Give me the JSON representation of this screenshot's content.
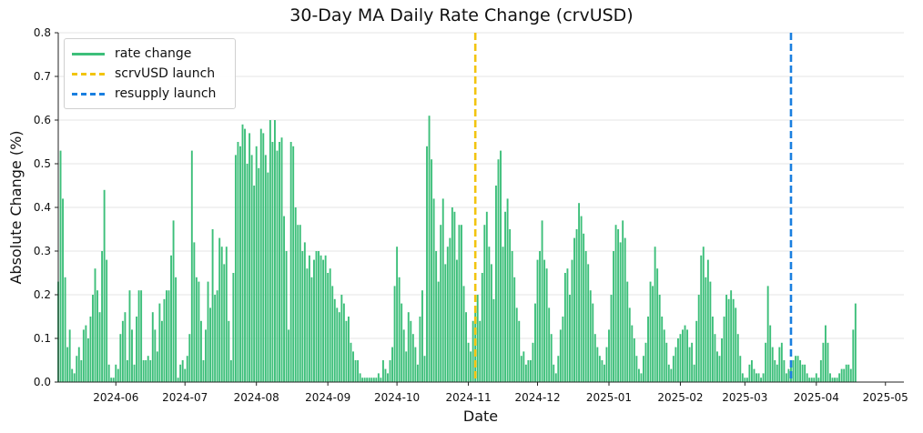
{
  "chart_data": {
    "type": "bar",
    "title": "30-Day MA Daily Rate Change (crvUSD)",
    "xlabel": "Date",
    "ylabel": "Absolute Change (%)",
    "ylim": [
      0,
      0.8
    ],
    "xlim": [
      "2024-05-07",
      "2025-05-09"
    ],
    "y_ticks": [
      "0.0",
      "0.1",
      "0.2",
      "0.3",
      "0.4",
      "0.5",
      "0.6",
      "0.7",
      "0.8"
    ],
    "x_ticks": [
      "2024-06",
      "2024-07",
      "2024-08",
      "2024-09",
      "2024-10",
      "2024-11",
      "2024-12",
      "2025-01",
      "2025-02",
      "2025-03",
      "2025-04",
      "2025-05"
    ],
    "grid": "horizontal",
    "legend_position": "upper-left",
    "colors": {
      "bars": "#3dbf7a",
      "scrvusd": "#f2c40f",
      "resupply": "#1a7fe0"
    },
    "series": [
      {
        "name": "rate change",
        "start_date": "2024-05-07",
        "frequency": "daily",
        "values": [
          0.23,
          0.53,
          0.42,
          0.24,
          0.08,
          0.12,
          0.03,
          0.02,
          0.06,
          0.08,
          0.05,
          0.12,
          0.13,
          0.1,
          0.15,
          0.2,
          0.26,
          0.21,
          0.16,
          0.3,
          0.44,
          0.28,
          0.04,
          0.01,
          0.01,
          0.04,
          0.03,
          0.11,
          0.14,
          0.16,
          0.05,
          0.21,
          0.12,
          0.04,
          0.15,
          0.21,
          0.21,
          0.05,
          0.05,
          0.06,
          0.05,
          0.16,
          0.12,
          0.07,
          0.18,
          0.14,
          0.19,
          0.21,
          0.21,
          0.29,
          0.37,
          0.24,
          0.01,
          0.04,
          0.05,
          0.03,
          0.06,
          0.11,
          0.53,
          0.32,
          0.24,
          0.23,
          0.14,
          0.05,
          0.12,
          0.23,
          0.17,
          0.35,
          0.2,
          0.21,
          0.33,
          0.31,
          0.27,
          0.31,
          0.14,
          0.05,
          0.25,
          0.52,
          0.55,
          0.54,
          0.59,
          0.58,
          0.5,
          0.57,
          0.52,
          0.45,
          0.54,
          0.49,
          0.58,
          0.57,
          0.52,
          0.48,
          0.6,
          0.55,
          0.6,
          0.53,
          0.55,
          0.56,
          0.38,
          0.3,
          0.12,
          0.55,
          0.54,
          0.4,
          0.36,
          0.36,
          0.3,
          0.32,
          0.26,
          0.29,
          0.24,
          0.28,
          0.3,
          0.3,
          0.29,
          0.28,
          0.29,
          0.25,
          0.26,
          0.22,
          0.19,
          0.17,
          0.16,
          0.2,
          0.18,
          0.14,
          0.15,
          0.09,
          0.07,
          0.05,
          0.05,
          0.02,
          0.01,
          0.01,
          0.01,
          0.01,
          0.01,
          0.01,
          0.01,
          0.02,
          0.01,
          0.05,
          0.03,
          0.02,
          0.05,
          0.08,
          0.22,
          0.31,
          0.24,
          0.18,
          0.12,
          0.07,
          0.16,
          0.14,
          0.11,
          0.08,
          0.04,
          0.15,
          0.21,
          0.06,
          0.54,
          0.61,
          0.51,
          0.42,
          0.3,
          0.23,
          0.36,
          0.42,
          0.27,
          0.31,
          0.33,
          0.4,
          0.39,
          0.28,
          0.36,
          0.36,
          0.22,
          0.16,
          0.09,
          0.07,
          0.14,
          0.17,
          0.2,
          0.14,
          0.25,
          0.36,
          0.39,
          0.31,
          0.27,
          0.19,
          0.45,
          0.51,
          0.53,
          0.31,
          0.39,
          0.42,
          0.35,
          0.3,
          0.24,
          0.17,
          0.14,
          0.06,
          0.07,
          0.04,
          0.05,
          0.05,
          0.09,
          0.18,
          0.28,
          0.3,
          0.37,
          0.28,
          0.26,
          0.17,
          0.11,
          0.04,
          0.02,
          0.06,
          0.12,
          0.15,
          0.25,
          0.26,
          0.2,
          0.28,
          0.33,
          0.35,
          0.41,
          0.38,
          0.34,
          0.3,
          0.27,
          0.21,
          0.18,
          0.11,
          0.08,
          0.06,
          0.05,
          0.04,
          0.08,
          0.12,
          0.2,
          0.3,
          0.36,
          0.35,
          0.32,
          0.37,
          0.33,
          0.23,
          0.17,
          0.13,
          0.1,
          0.06,
          0.03,
          0.02,
          0.06,
          0.09,
          0.15,
          0.23,
          0.22,
          0.31,
          0.26,
          0.2,
          0.15,
          0.12,
          0.09,
          0.04,
          0.03,
          0.06,
          0.08,
          0.1,
          0.11,
          0.12,
          0.13,
          0.12,
          0.08,
          0.09,
          0.04,
          0.14,
          0.2,
          0.29,
          0.31,
          0.24,
          0.28,
          0.23,
          0.15,
          0.11,
          0.07,
          0.06,
          0.1,
          0.15,
          0.2,
          0.19,
          0.21,
          0.19,
          0.17,
          0.11,
          0.06,
          0.02,
          0.01,
          0.01,
          0.04,
          0.05,
          0.03,
          0.02,
          0.02,
          0.01,
          0.02,
          0.09,
          0.22,
          0.13,
          0.08,
          0.05,
          0.04,
          0.08,
          0.09,
          0.05,
          0.02,
          0.03,
          0.04,
          0.05,
          0.06,
          0.06,
          0.05,
          0.04,
          0.04,
          0.02,
          0.01,
          0.01,
          0.01,
          0.02,
          0.01,
          0.05,
          0.09,
          0.13,
          0.09,
          0.02,
          0.01,
          0.01,
          0.01,
          0.02,
          0.03,
          0.03,
          0.04,
          0.04,
          0.03,
          0.12,
          0.18
        ]
      }
    ],
    "vlines": [
      {
        "label": "scrvUSD launch",
        "date": "2024-11-04",
        "style": "dashed",
        "color": "#f2c40f"
      },
      {
        "label": "resupply launch",
        "date": "2025-03-21",
        "style": "dashed",
        "color": "#1a7fe0"
      }
    ]
  },
  "legend": {
    "items": [
      {
        "label": "rate change"
      },
      {
        "label": "scrvUSD launch"
      },
      {
        "label": "resupply launch"
      }
    ]
  }
}
